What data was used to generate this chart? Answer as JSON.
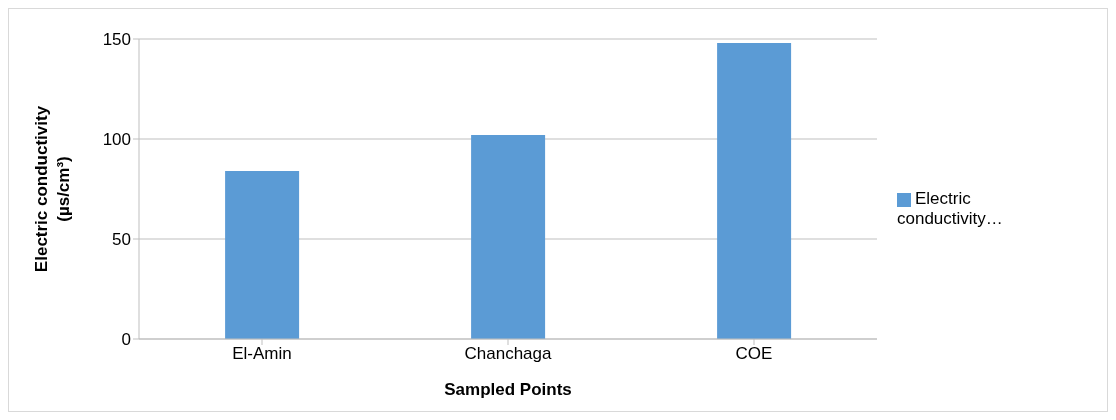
{
  "chart_data": {
    "type": "bar",
    "categories": [
      "El-Amin",
      "Chanchaga",
      "COE"
    ],
    "series": [
      {
        "name": "Electric conductivity…",
        "color": "#5b9bd5",
        "values": [
          84,
          102,
          148
        ]
      }
    ],
    "xlabel": "Sampled Points",
    "ylabel": "Electric conductivity (µs/cm³)",
    "ylim": [
      0,
      150
    ],
    "yticks": [
      0,
      50,
      100,
      150
    ],
    "grid": "y",
    "legend": "right"
  }
}
